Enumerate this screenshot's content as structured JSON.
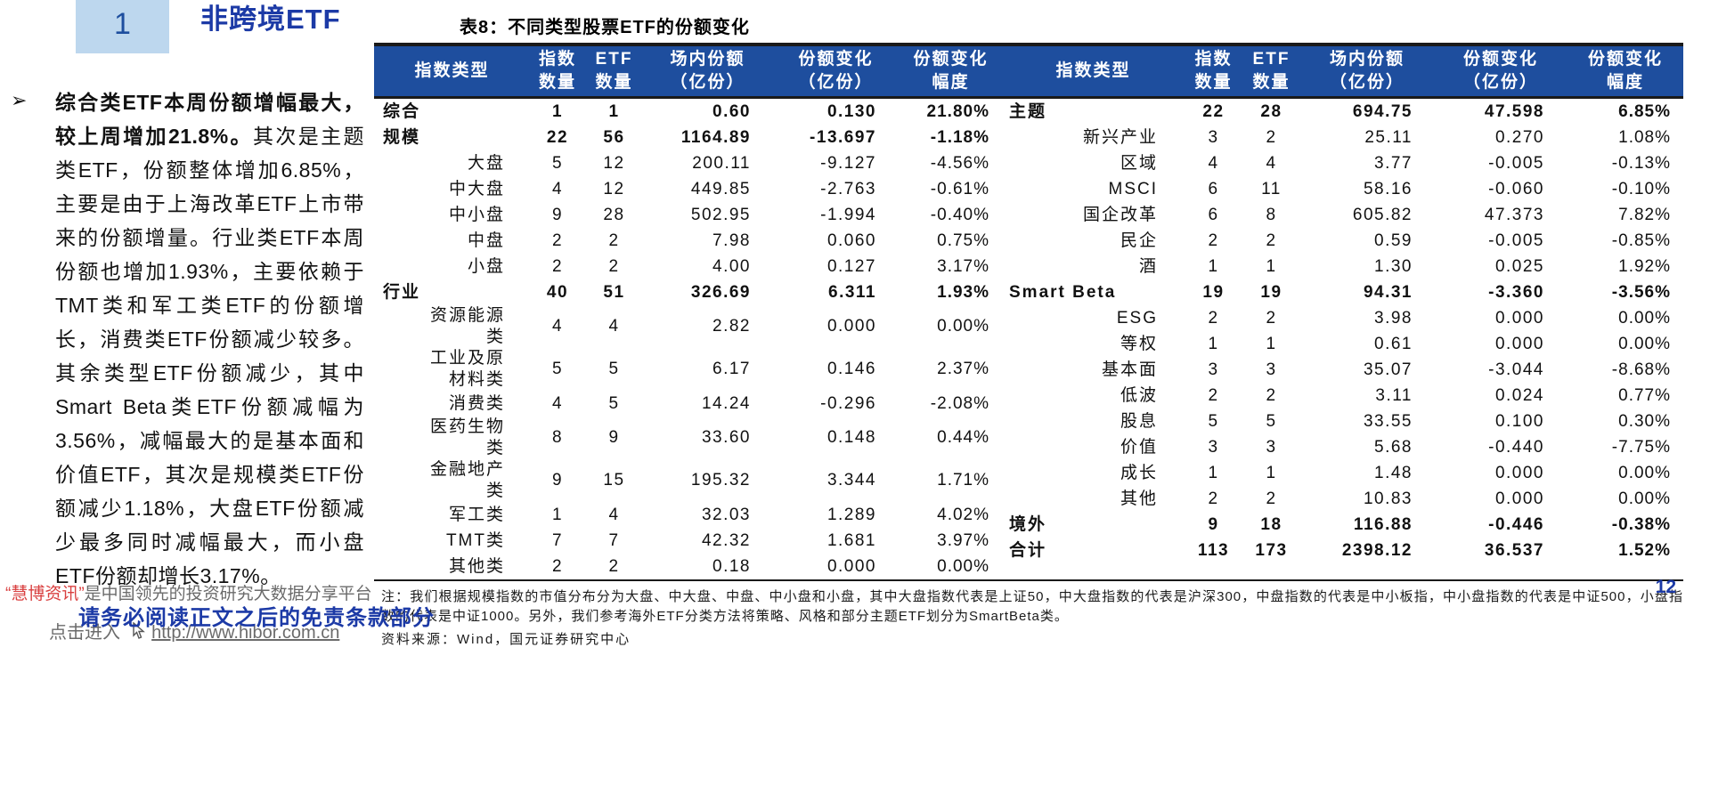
{
  "section": {
    "number": "1",
    "title": "非跨境ETF"
  },
  "paragraph": {
    "bullet": "➢",
    "lead_bold": "综合类ETF本周份额增幅最大，较上周增加21.8%。",
    "body": "其次是主题类ETF，份额整体增加6.85%，主要是由于上海改革ETF上市带来的份额增量。行业类ETF本周份额也增加1.93%，主要依赖于TMT类和军工类ETF的份额增长，消费类ETF份额减少较多。其余类型ETF份额减少，其中Smart Beta类ETF份额减幅为3.56%，减幅最大的是基本面和价值ETF，其次是规模类ETF份额减少1.18%，大盘ETF份额减少最多同时减幅最大，而小盘ETF份额却增长3.17%。"
  },
  "table": {
    "title": "表8：不同类型股票ETF的份额变化",
    "columns": [
      "指数类型",
      "指数\n数量",
      "ETF\n数量",
      "场内份额\n（亿份）",
      "份额变化\n（亿份）",
      "份额变化\n幅度"
    ],
    "left_rows": [
      {
        "label": "综合",
        "bold": true,
        "values": [
          "1",
          "1",
          "0.60",
          "0.130",
          "21.80%"
        ]
      },
      {
        "label": "规模",
        "bold": true,
        "values": [
          "22",
          "56",
          "1164.89",
          "-13.697",
          "-1.18%"
        ]
      },
      {
        "label": "大盘",
        "bold": false,
        "values": [
          "5",
          "12",
          "200.11",
          "-9.127",
          "-4.56%"
        ]
      },
      {
        "label": "中大盘",
        "bold": false,
        "values": [
          "4",
          "12",
          "449.85",
          "-2.763",
          "-0.61%"
        ]
      },
      {
        "label": "中小盘",
        "bold": false,
        "values": [
          "9",
          "28",
          "502.95",
          "-1.994",
          "-0.40%"
        ]
      },
      {
        "label": "中盘",
        "bold": false,
        "values": [
          "2",
          "2",
          "7.98",
          "0.060",
          "0.75%"
        ]
      },
      {
        "label": "小盘",
        "bold": false,
        "values": [
          "2",
          "2",
          "4.00",
          "0.127",
          "3.17%"
        ]
      },
      {
        "label": "行业",
        "bold": true,
        "values": [
          "40",
          "51",
          "326.69",
          "6.311",
          "1.93%"
        ]
      },
      {
        "label": "资源能源类",
        "bold": false,
        "values": [
          "4",
          "4",
          "2.82",
          "0.000",
          "0.00%"
        ]
      },
      {
        "label": "工业及原材料类",
        "bold": false,
        "values": [
          "5",
          "5",
          "6.17",
          "0.146",
          "2.37%"
        ]
      },
      {
        "label": "消费类",
        "bold": false,
        "values": [
          "4",
          "5",
          "14.24",
          "-0.296",
          "-2.08%"
        ]
      },
      {
        "label": "医药生物类",
        "bold": false,
        "values": [
          "8",
          "9",
          "33.60",
          "0.148",
          "0.44%"
        ]
      },
      {
        "label": "金融地产类",
        "bold": false,
        "values": [
          "9",
          "15",
          "195.32",
          "3.344",
          "1.71%"
        ]
      },
      {
        "label": "军工类",
        "bold": false,
        "values": [
          "1",
          "4",
          "32.03",
          "1.289",
          "4.02%"
        ]
      },
      {
        "label": "TMT类",
        "bold": false,
        "values": [
          "7",
          "7",
          "42.32",
          "1.681",
          "3.97%"
        ]
      },
      {
        "label": "其他类",
        "bold": false,
        "values": [
          "2",
          "2",
          "0.18",
          "0.000",
          "0.00%"
        ]
      }
    ],
    "right_rows": [
      {
        "label": "主题",
        "bold": true,
        "values": [
          "22",
          "28",
          "694.75",
          "47.598",
          "6.85%"
        ]
      },
      {
        "label": "新兴产业",
        "bold": false,
        "values": [
          "3",
          "2",
          "25.11",
          "0.270",
          "1.08%"
        ]
      },
      {
        "label": "区域",
        "bold": false,
        "values": [
          "4",
          "4",
          "3.77",
          "-0.005",
          "-0.13%"
        ]
      },
      {
        "label": "MSCI",
        "bold": false,
        "values": [
          "6",
          "11",
          "58.16",
          "-0.060",
          "-0.10%"
        ]
      },
      {
        "label": "国企改革",
        "bold": false,
        "values": [
          "6",
          "8",
          "605.82",
          "47.373",
          "7.82%"
        ]
      },
      {
        "label": "民企",
        "bold": false,
        "values": [
          "2",
          "2",
          "0.59",
          "-0.005",
          "-0.85%"
        ]
      },
      {
        "label": "酒",
        "bold": false,
        "values": [
          "1",
          "1",
          "1.30",
          "0.025",
          "1.92%"
        ]
      },
      {
        "label": "Smart Beta",
        "bold": true,
        "values": [
          "19",
          "19",
          "94.31",
          "-3.360",
          "-3.56%"
        ]
      },
      {
        "label": "ESG",
        "bold": false,
        "values": [
          "2",
          "2",
          "3.98",
          "0.000",
          "0.00%"
        ]
      },
      {
        "label": "等权",
        "bold": false,
        "values": [
          "1",
          "1",
          "0.61",
          "0.000",
          "0.00%"
        ]
      },
      {
        "label": "基本面",
        "bold": false,
        "values": [
          "3",
          "3",
          "35.07",
          "-3.044",
          "-8.68%"
        ]
      },
      {
        "label": "低波",
        "bold": false,
        "values": [
          "2",
          "2",
          "3.11",
          "0.024",
          "0.77%"
        ]
      },
      {
        "label": "股息",
        "bold": false,
        "values": [
          "5",
          "5",
          "33.55",
          "0.100",
          "0.30%"
        ]
      },
      {
        "label": "价值",
        "bold": false,
        "values": [
          "3",
          "3",
          "5.68",
          "-0.440",
          "-7.75%"
        ]
      },
      {
        "label": "成长",
        "bold": false,
        "values": [
          "1",
          "1",
          "1.48",
          "0.000",
          "0.00%"
        ]
      },
      {
        "label": "其他",
        "bold": false,
        "values": [
          "2",
          "2",
          "10.83",
          "0.000",
          "0.00%"
        ]
      },
      {
        "label": "境外",
        "bold": true,
        "values": [
          "9",
          "18",
          "116.88",
          "-0.446",
          "-0.38%"
        ]
      },
      {
        "label": "合计",
        "bold": true,
        "values": [
          "113",
          "173",
          "2398.12",
          "36.537",
          "1.52%"
        ]
      }
    ],
    "note": "注：我们根据规模指数的市值分布分为大盘、中大盘、中盘、中小盘和小盘，其中大盘指数代表是上证50，中大盘指数的代表是沪深300，中盘指数的代表是中小板指，中小盘指数的代表是中证500，小盘指数的代表是中证1000。另外，我们参考海外ETF分类方法将策略、风格和部分主题ETF划分为SmartBeta类。",
    "source": "资料来源：Wind，国元证券研究中心"
  },
  "footer": {
    "watermark_brand": "“慧博资讯”",
    "watermark_rest": "是中国领先的投资研究大数据分享平台",
    "disclaimer": "请务必阅读正文之后的免责条款部分",
    "link_prefix": "点击进入",
    "link_url": "http://www.hibor.com.cn",
    "page_number": "12"
  },
  "colors": {
    "header_blue": "#1e4e9e",
    "title_blue": "#1c3aa6",
    "number_box_blue": "#bdd7ee",
    "brand_red": "#d94040"
  }
}
